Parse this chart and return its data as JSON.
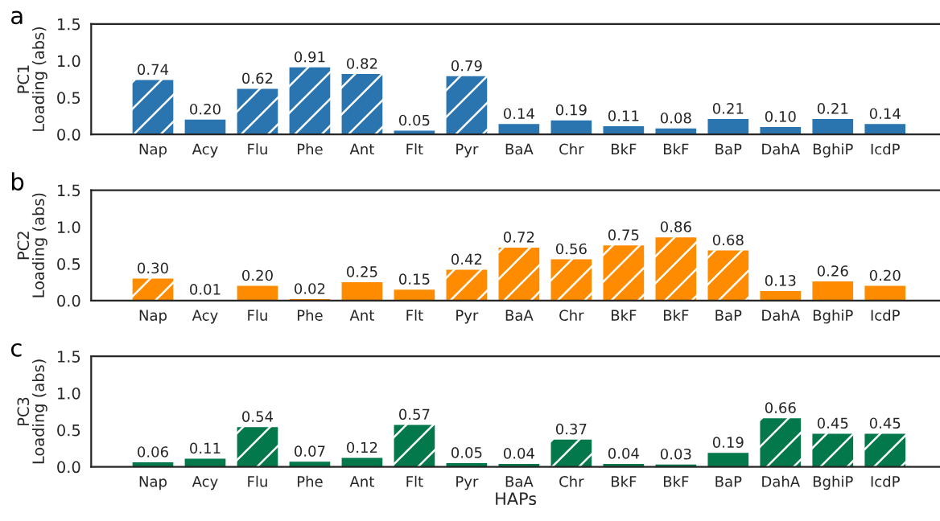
{
  "chart_data": [
    {
      "type": "bar",
      "title": "a",
      "ylabel": "PC1\nLoading (abs)",
      "categories": [
        "Nap",
        "Acy",
        "Flu",
        "Phe",
        "Ant",
        "Flt",
        "Pyr",
        "BaA",
        "Chr",
        "BkF",
        "BkF",
        "BaP",
        "DahA",
        "BghiP",
        "IcdP"
      ],
      "series": [
        {
          "color": "#2a75b0",
          "values": [
            null,
            0.2,
            null,
            null,
            null,
            0.05,
            null,
            0.14,
            0.19,
            0.11,
            0.08,
            0.21,
            0.1,
            0.21,
            0.14
          ],
          "value_labels": [
            null,
            "0.20",
            null,
            null,
            null,
            "0.05",
            null,
            "0.14",
            "0.19",
            "0.11",
            "0.08",
            "0.21",
            "0.10",
            "0.21",
            "0.14"
          ]
        },
        {
          "color": "#2a75b0",
          "values": [
            0.74,
            null,
            0.62,
            0.91,
            0.82,
            null,
            0.79,
            null,
            null,
            null,
            null,
            null,
            null,
            null,
            null
          ],
          "value_labels": [
            "0.74",
            null,
            "0.62",
            "0.91",
            "0.82",
            null,
            "0.79",
            null,
            null,
            null,
            null,
            null,
            null,
            null,
            null
          ]
        }
      ],
      "ylim": [
        0,
        1.5
      ],
      "yticks": [
        {
          "value": 0,
          "label": "0.0"
        },
        {
          "value": 0.5,
          "label": "0.5"
        },
        {
          "value": 1,
          "label": "1.0"
        },
        {
          "value": 1.5,
          "label": "1.5"
        }
      ]
    },
    {
      "type": "bar",
      "title": "b",
      "ylabel": "PC2\nLoading (abs)",
      "categories": [
        "Nap",
        "Acy",
        "Flu",
        "Phe",
        "Ant",
        "Flt",
        "Pyr",
        "BaA",
        "Chr",
        "BkF",
        "BkF",
        "BaP",
        "DahA",
        "BghiP",
        "IcdP"
      ],
      "series": [
        {
          "color": "#ff8c00",
          "values": [
            null,
            0.01,
            0.2,
            0.02,
            0.25,
            0.15,
            null,
            null,
            null,
            null,
            null,
            null,
            0.13,
            0.26,
            0.2
          ],
          "value_labels": [
            null,
            "0.01",
            "0.20",
            "0.02",
            "0.25",
            "0.15",
            null,
            null,
            null,
            null,
            null,
            null,
            "0.13",
            "0.26",
            "0.20"
          ]
        },
        {
          "color": "#ff8c00",
          "values": [
            0.3,
            null,
            null,
            null,
            null,
            null,
            0.42,
            0.72,
            0.56,
            0.75,
            0.86,
            0.68,
            null,
            null,
            null
          ],
          "value_labels": [
            "0.30",
            null,
            null,
            null,
            null,
            null,
            "0.42",
            "0.72",
            "0.56",
            "0.75",
            "0.86",
            "0.68",
            null,
            null,
            null
          ]
        }
      ],
      "ylim": [
        0,
        1.5
      ],
      "yticks": [
        {
          "value": 0,
          "label": "0.0"
        },
        {
          "value": 0.5,
          "label": "0.5"
        },
        {
          "value": 1,
          "label": "1.0"
        },
        {
          "value": 1.5,
          "label": "1.5"
        }
      ]
    },
    {
      "type": "bar",
      "title": "c",
      "ylabel": "PC3\nLoading (abs)",
      "xlabel": "HAPs",
      "categories": [
        "Nap",
        "Acy",
        "Flu",
        "Phe",
        "Ant",
        "Flt",
        "Pyr",
        "BaA",
        "Chr",
        "BkF",
        "BkF",
        "BaP",
        "DahA",
        "BghiP",
        "IcdP"
      ],
      "series": [
        {
          "color": "#03784a",
          "values": [
            0.06,
            0.11,
            null,
            0.07,
            0.12,
            null,
            0.05,
            0.04,
            null,
            0.04,
            0.03,
            0.19,
            null,
            null,
            null
          ],
          "value_labels": [
            "0.06",
            "0.11",
            null,
            "0.07",
            "0.12",
            null,
            "0.05",
            "0.04",
            null,
            "0.04",
            "0.03",
            "0.19",
            null,
            null,
            null
          ]
        },
        {
          "color": "#03784a",
          "values": [
            null,
            null,
            0.54,
            null,
            null,
            0.57,
            null,
            null,
            0.37,
            null,
            null,
            null,
            0.66,
            0.45,
            0.45
          ],
          "value_labels": [
            null,
            null,
            "0.54",
            null,
            null,
            "0.57",
            null,
            null,
            "0.37",
            null,
            null,
            null,
            "0.66",
            "0.45",
            "0.45"
          ]
        }
      ],
      "ylim": [
        0,
        1.5
      ],
      "yticks": [
        {
          "value": 0,
          "label": "0.0"
        },
        {
          "value": 0.5,
          "label": "0.5"
        },
        {
          "value": 1,
          "label": "1.0"
        },
        {
          "value": 1.5,
          "label": "1.5"
        }
      ]
    }
  ]
}
